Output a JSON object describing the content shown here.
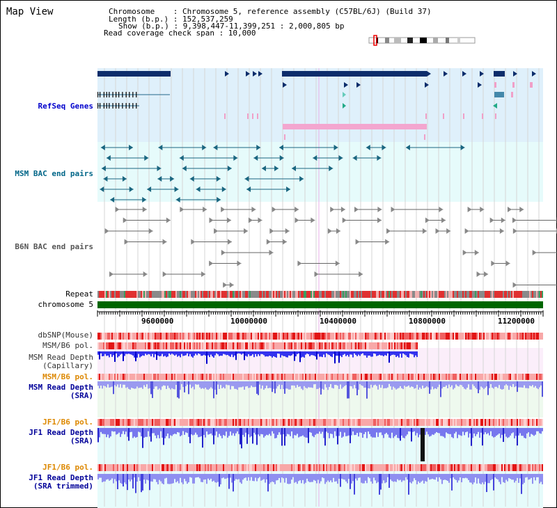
{
  "header": {
    "title": "Map View",
    "info_lines": [
      "Chromosome    : Chromosome 5, reference assembly (C57BL/6J) (Build 37)",
      "Length (b.p.) : 152,537,259",
      "Show (b.p.) : 9,398,447-11,399,251 : 2,000,805 bp",
      "Read coverage check span : 10,000"
    ]
  },
  "tracks": {
    "refseq": "RefSeq Genes",
    "msm_bac": "MSM BAC end pairs",
    "b6n_bac": "B6N BAC end pairs",
    "repeat": "Repeat",
    "chromosome": "chromosome 5",
    "dbsnp": "dbSNP(Mouse)",
    "msm_b6_pol": "MSM/B6 pol.",
    "msm_read_depth_cap_1": "MSM Read Depth",
    "msm_read_depth_cap_2": "(Capillary)",
    "msm_b6_pol2": "MSM/B6 pol.",
    "msm_read_depth_sra_1": "MSM Read Depth",
    "msm_read_depth_sra_2": "(SRA)",
    "jf1_b6_pol": "JF1/B6 pol.",
    "jf1_read_depth_sra_1": "JF1 Read Depth",
    "jf1_read_depth_sra_2": "(SRA)",
    "jf1_b6_pol2": "JF1/B6 pol.",
    "jf1_read_depth_trim_1": "JF1 Read Depth",
    "jf1_read_depth_trim_2": "(SRA trimmed)"
  },
  "axis": {
    "ticks": [
      "9600000",
      "10000000",
      "10400000",
      "10800000",
      "11200000"
    ]
  },
  "colors": {
    "refseq_label": "#0000cc",
    "msm_bac_label": "#006688",
    "b6n_bac_label": "#555555",
    "pol_label": "#dd8800",
    "depth_label": "#000099",
    "chromosome": "#006600"
  }
}
